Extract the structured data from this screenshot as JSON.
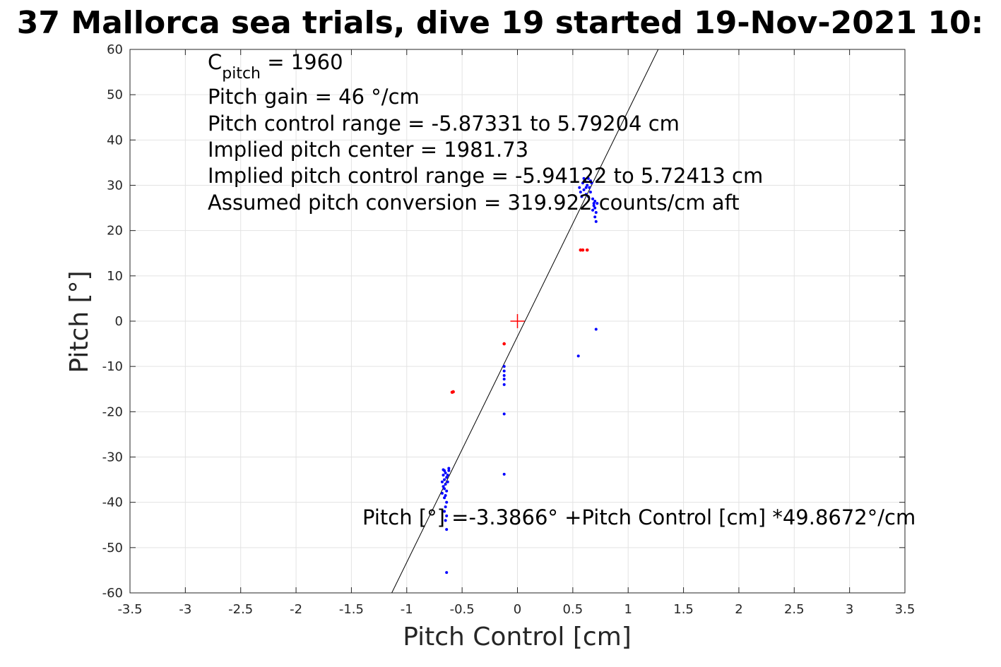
{
  "chart_data": {
    "type": "scatter",
    "title": "37 Mallorca sea trials, dive 19 started 19-Nov-2021 10:",
    "xlabel": "Pitch Control [cm]",
    "ylabel": "Pitch [°]",
    "xlim": [
      -3.5,
      3.5
    ],
    "ylim": [
      -60,
      60
    ],
    "x_ticks": [
      -3.5,
      -3,
      -2.5,
      -2,
      -1.5,
      -1,
      -0.5,
      0,
      0.5,
      1,
      1.5,
      2,
      2.5,
      3,
      3.5
    ],
    "y_ticks": [
      -60,
      -50,
      -40,
      -30,
      -20,
      -10,
      0,
      10,
      20,
      30,
      40,
      50,
      60
    ],
    "grid": true,
    "colors": {
      "blue_series": "#0000ff",
      "red_series": "#ff0000",
      "fit_line": "#000000",
      "center_marker": "#ff0000"
    },
    "series": [
      {
        "color": "#0000ff",
        "points": [
          [
            -0.66,
            -33.0
          ],
          [
            -0.65,
            -33.5
          ],
          [
            -0.67,
            -34.0
          ],
          [
            -0.64,
            -34.5
          ],
          [
            -0.66,
            -35.0
          ],
          [
            -0.68,
            -35.5
          ],
          [
            -0.65,
            -36.0
          ],
          [
            -0.67,
            -36.5
          ],
          [
            -0.66,
            -37.0
          ],
          [
            -0.64,
            -37.5
          ],
          [
            -0.68,
            -38.0
          ],
          [
            -0.65,
            -38.5
          ],
          [
            -0.66,
            -39.0
          ],
          [
            -0.64,
            -40.0
          ],
          [
            -0.65,
            -41.0
          ],
          [
            -0.66,
            -42.0
          ],
          [
            -0.64,
            -43.0
          ],
          [
            -0.65,
            -44.0
          ],
          [
            -0.63,
            -34.0
          ],
          [
            -0.62,
            -33.0
          ],
          [
            -0.63,
            -35.5
          ],
          [
            -0.62,
            -32.5
          ],
          [
            -0.67,
            -32.8
          ],
          [
            -0.64,
            -46.0
          ],
          [
            -0.64,
            -55.5
          ],
          [
            -0.12,
            -10.0
          ],
          [
            -0.12,
            -11.0
          ],
          [
            -0.12,
            -12.0
          ],
          [
            -0.12,
            -12.8
          ],
          [
            -0.12,
            -14.0
          ],
          [
            -0.12,
            -20.5
          ],
          [
            -0.12,
            -33.8
          ],
          [
            0.55,
            -7.7
          ],
          [
            0.71,
            -1.8
          ],
          [
            0.56,
            29.5
          ],
          [
            0.57,
            28.5
          ],
          [
            0.58,
            27.5
          ],
          [
            0.59,
            30.5
          ],
          [
            0.6,
            29.0
          ],
          [
            0.61,
            31.0
          ],
          [
            0.62,
            28.0
          ],
          [
            0.63,
            30.0
          ],
          [
            0.64,
            31.5
          ],
          [
            0.65,
            29.5
          ],
          [
            0.66,
            28.5
          ],
          [
            0.67,
            30.5
          ],
          [
            0.68,
            27.0
          ],
          [
            0.69,
            26.0
          ],
          [
            0.7,
            25.0
          ],
          [
            0.71,
            24.0
          ],
          [
            0.7,
            23.0
          ],
          [
            0.71,
            22.0
          ],
          [
            0.69,
            25.5
          ],
          [
            0.7,
            26.5
          ],
          [
            0.68,
            24.5
          ],
          [
            0.72,
            26.0
          ],
          [
            0.66,
            31.0
          ],
          [
            0.64,
            27.5
          ],
          [
            0.62,
            29.5
          ],
          [
            0.6,
            31.5
          ]
        ]
      },
      {
        "color": "#ff0000",
        "points": [
          [
            -0.59,
            -15.7
          ],
          [
            -0.58,
            -15.6
          ],
          [
            -0.12,
            -5.0
          ],
          [
            0.57,
            15.7
          ],
          [
            0.59,
            15.7
          ],
          [
            0.63,
            15.7
          ]
        ]
      }
    ],
    "fit_line": {
      "intercept": -3.3866,
      "slope": 49.8672
    },
    "center_marker": {
      "x": 0,
      "y": 0
    },
    "annotations": {
      "c_pitch_main": "C",
      "c_pitch_sub": "pitch",
      "c_pitch_value": " = 1960",
      "pitch_gain": "Pitch gain = 46 °/cm",
      "control_range": "Pitch control range = -5.87331 to 5.79204 cm",
      "implied_center": "Implied pitch center = 1981.73",
      "implied_range": "Implied pitch control range = -5.94122 to 5.72413 cm",
      "conversion": "Assumed pitch conversion = 319.922 counts/cm aft",
      "fit_equation": "Pitch [°] =-3.3866° +Pitch Control [cm] *49.8672°/cm"
    }
  }
}
